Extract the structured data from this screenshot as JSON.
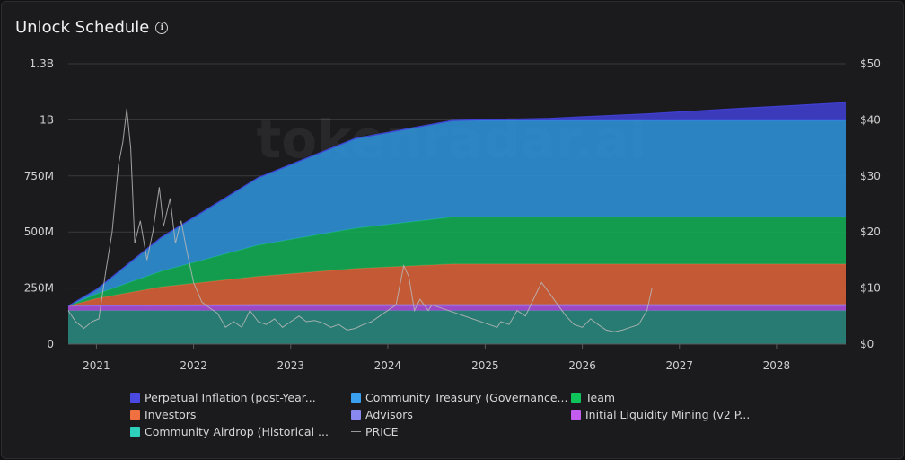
{
  "page": {
    "title": "Unlock Schedule",
    "info_icon": "info-circle-icon",
    "watermark": "tokenradar.ai"
  },
  "colors": {
    "background": "#1b1b1d",
    "grid": "#3a3a3d",
    "price_line": "#b8b8b8"
  },
  "chart_data": {
    "type": "area",
    "title": "Unlock Schedule",
    "stacked": true,
    "x_ticks": [
      "2021",
      "2022",
      "2023",
      "2024",
      "2025",
      "2026",
      "2027",
      "2028"
    ],
    "x_range": [
      "2020-09-17",
      "2028-09-17"
    ],
    "y_left": {
      "ticks": [
        "0",
        "250M",
        "500M",
        "750M",
        "1B",
        "1.3B"
      ],
      "ylim": [
        0,
        1250000000
      ]
    },
    "y_right": {
      "ticks": [
        "$0",
        "$10",
        "$20",
        "$30",
        "$40",
        "$50"
      ],
      "ylim": [
        0,
        50
      ]
    },
    "grid": true,
    "legend_position": "bottom",
    "x": [
      "2020-09-17",
      "2021-01-01",
      "2021-09-01",
      "2022-09-01",
      "2023-09-01",
      "2024-09-01",
      "2025-09-01",
      "2026-09-01",
      "2027-09-01",
      "2028-09-17"
    ],
    "series": [
      {
        "name": "Community Airdrop (Historical ...",
        "color": "#2a8c82",
        "values": [
          150000000,
          150000000,
          150000000,
          150000000,
          150000000,
          150000000,
          150000000,
          150000000,
          150000000,
          150000000
        ]
      },
      {
        "name": "Initial Liquidity Mining (v2 P...",
        "color": "#b34fe0",
        "values": [
          20000000,
          20000000,
          20000000,
          20000000,
          20000000,
          20000000,
          20000000,
          20000000,
          20000000,
          20000000
        ]
      },
      {
        "name": "Advisors",
        "color": "#7f7fe0",
        "values": [
          0,
          3000000,
          5000000,
          7000000,
          7000000,
          7000000,
          7000000,
          7000000,
          7000000,
          7000000
        ]
      },
      {
        "name": "Investors",
        "color": "#e0643a",
        "values": [
          0,
          30000000,
          80000000,
          125000000,
          160000000,
          180000000,
          180000000,
          180000000,
          180000000,
          180000000
        ]
      },
      {
        "name": "Team",
        "color": "#12b357",
        "values": [
          0,
          20000000,
          70000000,
          140000000,
          180000000,
          210000000,
          210000000,
          210000000,
          210000000,
          210000000
        ]
      },
      {
        "name": "Community Treasury (Governance...",
        "color": "#2f95de",
        "values": [
          0,
          20000000,
          150000000,
          300000000,
          400000000,
          430000000,
          430000000,
          430000000,
          430000000,
          430000000
        ]
      },
      {
        "name": "Perpetual Inflation (post-Year...",
        "color": "#4040d6",
        "values": [
          0,
          0,
          0,
          0,
          0,
          0,
          10000000,
          30000000,
          55000000,
          80000000
        ]
      }
    ],
    "price_series": {
      "name": "PRICE",
      "x": [
        "2020-09-17",
        "2020-10-15",
        "2020-11-15",
        "2020-12-15",
        "2021-01-10",
        "2021-02-05",
        "2021-03-01",
        "2021-03-25",
        "2021-04-10",
        "2021-04-25",
        "2021-05-10",
        "2021-05-25",
        "2021-06-15",
        "2021-07-10",
        "2021-08-01",
        "2021-08-25",
        "2021-09-10",
        "2021-10-05",
        "2021-10-25",
        "2021-11-15",
        "2021-12-05",
        "2022-01-01",
        "2022-02-01",
        "2022-03-01",
        "2022-04-01",
        "2022-05-01",
        "2022-06-01",
        "2022-07-01",
        "2022-08-01",
        "2022-09-01",
        "2022-10-01",
        "2022-11-01",
        "2022-12-01",
        "2023-01-01",
        "2023-02-01",
        "2023-03-01",
        "2023-04-01",
        "2023-05-01",
        "2023-06-01",
        "2023-07-01",
        "2023-08-01",
        "2023-09-01",
        "2023-10-01",
        "2023-11-01",
        "2023-12-01",
        "2024-01-01",
        "2024-02-01",
        "2024-03-01",
        "2024-03-20",
        "2024-04-10",
        "2024-05-01",
        "2024-06-01",
        "2024-06-15",
        "2025-02-15",
        "2025-03-01",
        "2025-04-01",
        "2025-05-01",
        "2025-06-01",
        "2025-07-01",
        "2025-08-01",
        "2025-09-01",
        "2025-10-01",
        "2025-11-01",
        "2025-12-01",
        "2026-01-01",
        "2026-02-01",
        "2026-03-01",
        "2026-04-01",
        "2026-05-01",
        "2026-06-01",
        "2026-07-01",
        "2026-08-01",
        "2026-09-01",
        "2026-09-20"
      ],
      "values": [
        6,
        4,
        2.8,
        4,
        4.5,
        13,
        20,
        32,
        36,
        42,
        35,
        18,
        22,
        15,
        20,
        28,
        21,
        26,
        18,
        22,
        17,
        11,
        7.5,
        6.5,
        5.5,
        3,
        4,
        3,
        6,
        4,
        3.5,
        4.5,
        3,
        4,
        5,
        4,
        4.2,
        3.8,
        3,
        3.5,
        2.5,
        2.8,
        3.5,
        4,
        5,
        6,
        7,
        14,
        12,
        6,
        8,
        6,
        7,
        3,
        4,
        3.5,
        6,
        5,
        8,
        11,
        9,
        7,
        5,
        3.5,
        3,
        4.5,
        3.5,
        2.5,
        2.2,
        2.5,
        3,
        3.5,
        6,
        10
      ]
    }
  },
  "legend": [
    {
      "label": "Perpetual Inflation (post-Year...",
      "color": "#4a4ae3",
      "kind": "box"
    },
    {
      "label": "Community Treasury (Governance...",
      "color": "#3aa0ee",
      "kind": "box"
    },
    {
      "label": "Team",
      "color": "#10c45c",
      "kind": "box"
    },
    {
      "label": "Investors",
      "color": "#f0703f",
      "kind": "box"
    },
    {
      "label": "Advisors",
      "color": "#8888ee",
      "kind": "box"
    },
    {
      "label": "Initial Liquidity Mining (v2 P...",
      "color": "#c25cef",
      "kind": "box"
    },
    {
      "label": "Community Airdrop (Historical ...",
      "color": "#2fd0bb",
      "kind": "box"
    },
    {
      "label": "PRICE",
      "color": "#9a9a9a",
      "kind": "line"
    }
  ]
}
